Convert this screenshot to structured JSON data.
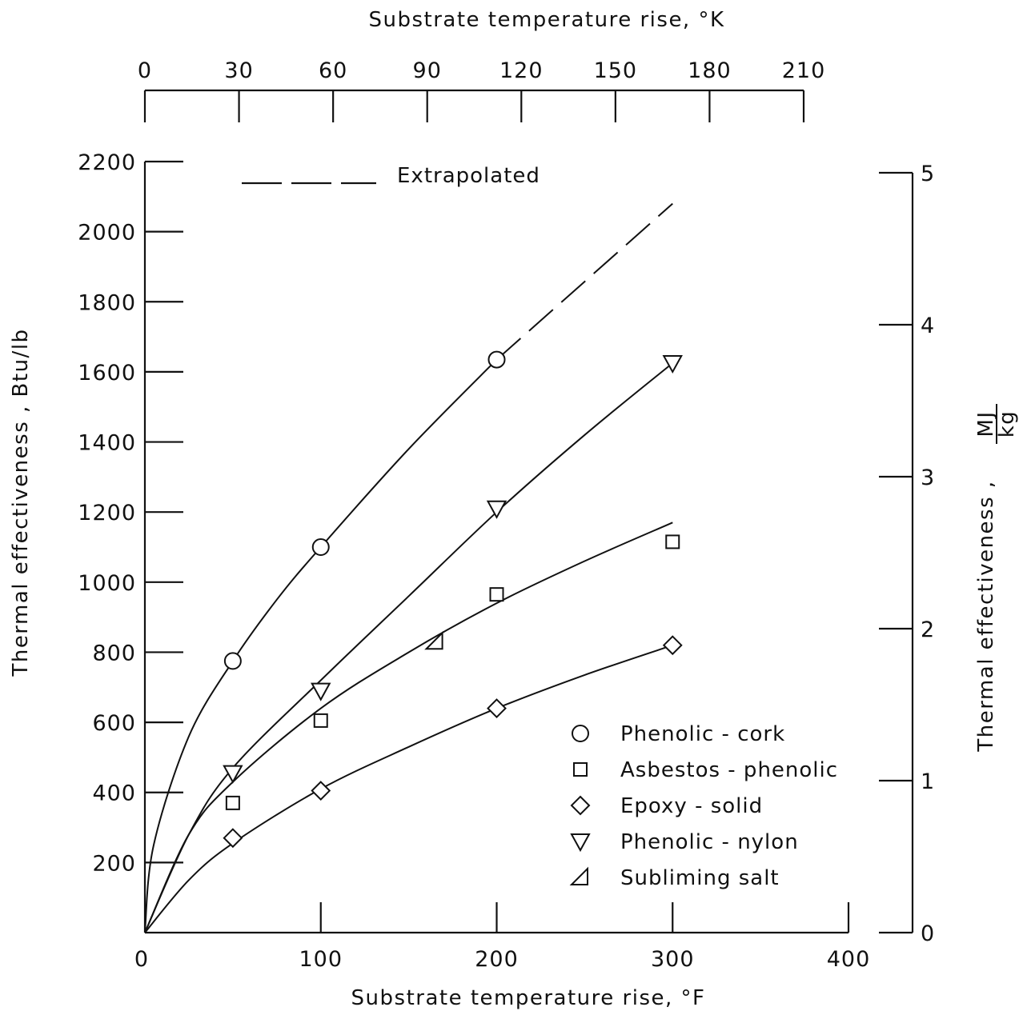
{
  "chart_data": {
    "type": "line",
    "xlabel": "Substrate temperature rise, °F",
    "x2label": "Substrate temperature rise, °K",
    "ylabel": "Thermal effectiveness , Btu/lb",
    "y2label_prefix": "Thermal effectiveness ,",
    "y2label_num": "MJ",
    "y2label_den": "kg",
    "xlim": [
      0,
      400
    ],
    "ylim": [
      0,
      2200
    ],
    "x2lim": [
      0,
      210
    ],
    "y2lim": [
      0,
      5
    ],
    "xticks": [
      "0",
      "100",
      "200",
      "300",
      "400"
    ],
    "yticks": [
      "200",
      "400",
      "600",
      "800",
      "1000",
      "1200",
      "1400",
      "1600",
      "1800",
      "2000",
      "2200"
    ],
    "x2ticks": [
      "0",
      "30",
      "60",
      "90",
      "120",
      "150",
      "180",
      "210"
    ],
    "y2ticks": [
      "0",
      "1",
      "2",
      "3",
      "4",
      "5"
    ],
    "extrapolated_label": "Extrapolated",
    "legend_position": "lower-right",
    "series": [
      {
        "name": "Phenolic - cork",
        "marker": "circle",
        "points": [
          [
            50,
            775
          ],
          [
            100,
            1100
          ],
          [
            200,
            1635
          ]
        ],
        "curve": [
          [
            0,
            0
          ],
          [
            5,
            250
          ],
          [
            25,
            560
          ],
          [
            50,
            775
          ],
          [
            75,
            950
          ],
          [
            100,
            1100
          ],
          [
            150,
            1380
          ],
          [
            200,
            1635
          ]
        ],
        "extrapolated": [
          [
            200,
            1635
          ],
          [
            300,
            2080
          ]
        ]
      },
      {
        "name": "Asbestos - phenolic",
        "marker": "square",
        "points": [
          [
            50,
            370
          ],
          [
            100,
            605
          ],
          [
            200,
            965
          ],
          [
            300,
            1115
          ]
        ],
        "curve": [
          [
            0,
            0
          ],
          [
            25,
            280
          ],
          [
            50,
            430
          ],
          [
            100,
            640
          ],
          [
            150,
            800
          ],
          [
            200,
            940
          ],
          [
            250,
            1060
          ],
          [
            300,
            1170
          ]
        ]
      },
      {
        "name": "Epoxy - solid",
        "marker": "diamond",
        "points": [
          [
            50,
            270
          ],
          [
            100,
            405
          ],
          [
            200,
            640
          ],
          [
            300,
            820
          ]
        ],
        "curve": [
          [
            0,
            0
          ],
          [
            25,
            150
          ],
          [
            50,
            255
          ],
          [
            100,
            410
          ],
          [
            150,
            530
          ],
          [
            200,
            640
          ],
          [
            250,
            735
          ],
          [
            300,
            820
          ]
        ]
      },
      {
        "name": "Phenolic - nylon",
        "marker": "triangle-down",
        "points": [
          [
            50,
            455
          ],
          [
            100,
            690
          ],
          [
            200,
            1210
          ],
          [
            300,
            1625
          ]
        ],
        "curve": [
          [
            0,
            0
          ],
          [
            25,
            280
          ],
          [
            50,
            470
          ],
          [
            100,
            720
          ],
          [
            150,
            960
          ],
          [
            200,
            1200
          ],
          [
            250,
            1420
          ],
          [
            300,
            1625
          ]
        ]
      },
      {
        "name": "Subliming salt",
        "marker": "triangle-left",
        "points": [
          [
            165,
            830
          ]
        ]
      }
    ]
  }
}
